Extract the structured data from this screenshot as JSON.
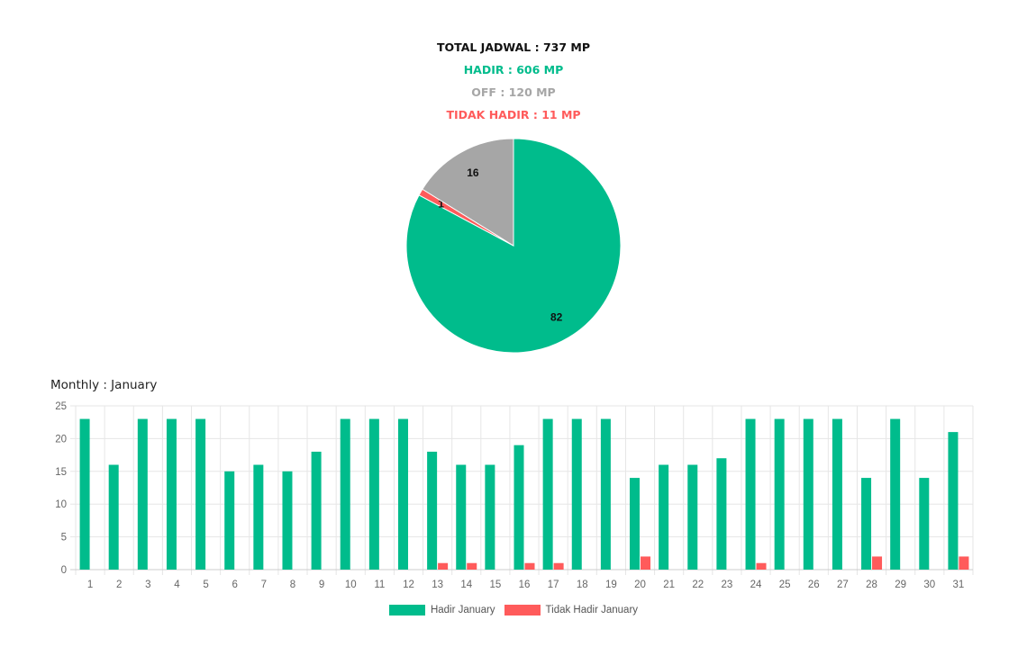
{
  "summary": {
    "total": "TOTAL JADWAL : 737 MP",
    "hadir": "HADIR : 606 MP",
    "off": "OFF : 120 MP",
    "tidak_hadir": "TIDAK HADIR : 11 MP"
  },
  "colors": {
    "hadir": "#00bc8c",
    "off": "#a6a6a6",
    "tidak_hadir": "#ff5b5b",
    "grid": "#e6e6e6",
    "text": "#666666"
  },
  "monthly_title": "Monthly : January",
  "chart_data": [
    {
      "type": "pie",
      "title": "",
      "slices": [
        {
          "label": "Hadir",
          "value": 82,
          "color": "#00bc8c"
        },
        {
          "label": "Tidak Hadir",
          "value": 1,
          "color": "#ff5b5b"
        },
        {
          "label": "Off",
          "value": 16,
          "color": "#a6a6a6"
        }
      ],
      "data_labels": [
        "82",
        "1",
        "16"
      ]
    },
    {
      "type": "bar",
      "title": "Monthly : January",
      "xlabel": "",
      "ylabel": "",
      "ylim": [
        0,
        25
      ],
      "yticks": [
        0,
        5,
        10,
        15,
        20,
        25
      ],
      "grid": true,
      "legend_position": "bottom",
      "categories": [
        "1",
        "2",
        "3",
        "4",
        "5",
        "6",
        "7",
        "8",
        "9",
        "10",
        "11",
        "12",
        "13",
        "14",
        "15",
        "16",
        "17",
        "18",
        "19",
        "20",
        "21",
        "22",
        "23",
        "24",
        "25",
        "26",
        "27",
        "28",
        "29",
        "30",
        "31"
      ],
      "series": [
        {
          "name": "Hadir January",
          "color": "#00bc8c",
          "values": [
            23,
            16,
            23,
            23,
            23,
            15,
            16,
            15,
            18,
            23,
            23,
            23,
            18,
            16,
            16,
            19,
            23,
            23,
            23,
            14,
            16,
            16,
            17,
            23,
            23,
            23,
            23,
            14,
            23,
            14,
            21
          ]
        },
        {
          "name": "Tidak Hadir January",
          "color": "#ff5b5b",
          "values": [
            0,
            0,
            0,
            0,
            0,
            0,
            0,
            0,
            0,
            0,
            0,
            0,
            1,
            1,
            0,
            1,
            1,
            0,
            0,
            2,
            0,
            0,
            0,
            1,
            0,
            0,
            0,
            2,
            0,
            0,
            2
          ]
        }
      ]
    }
  ]
}
